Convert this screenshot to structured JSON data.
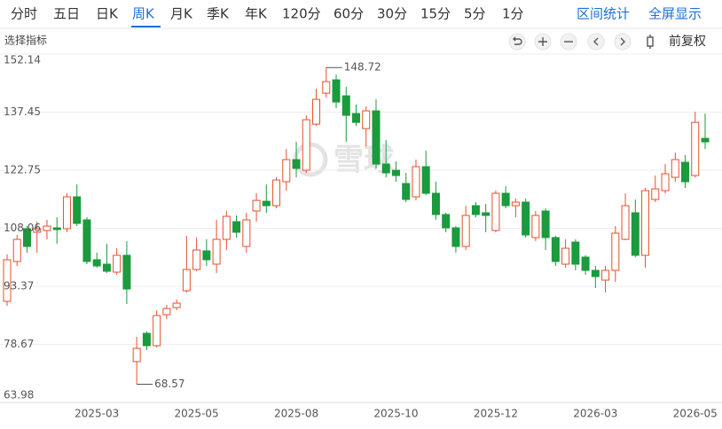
{
  "toolbar": {
    "tabs": [
      "分时",
      "五日",
      "日K",
      "周K",
      "月K",
      "季K",
      "年K",
      "120分",
      "60分",
      "30分",
      "15分",
      "5分",
      "1分"
    ],
    "actions": [
      "区间统计",
      "全屏显示"
    ]
  },
  "indicator_label": "选择指标",
  "adjust_label": "前复权",
  "chart_data": {
    "type": "candlestick",
    "watermark": "雪球",
    "categories": [
      null,
      null,
      null,
      null,
      null,
      null,
      null,
      null,
      null,
      "2025-03",
      null,
      null,
      null,
      null,
      null,
      null,
      null,
      null,
      null,
      "2025-05",
      null,
      null,
      null,
      null,
      null,
      null,
      null,
      null,
      null,
      "2025-08",
      null,
      null,
      null,
      null,
      null,
      null,
      null,
      null,
      null,
      "2025-10",
      null,
      null,
      null,
      null,
      null,
      null,
      null,
      null,
      null,
      "2025-12",
      null,
      null,
      null,
      null,
      null,
      null,
      null,
      null,
      null,
      "2026-03",
      null,
      null,
      null,
      null,
      null,
      null,
      null,
      null,
      null,
      "2026-05",
      null
    ],
    "open": [
      89.55,
      99.64,
      107.94,
      107.04,
      107.49,
      108.16,
      107.94,
      116.01,
      110.18,
      100.09,
      98.97,
      96.95,
      101.21,
      74.3,
      81.47,
      78.34,
      86.18,
      87.98,
      92.24,
      97.62,
      102.33,
      98.97,
      105.25,
      109.73,
      103.45,
      112.42,
      114.89,
      113.77,
      119.83,
      125.43,
      122.74,
      134.4,
      142.25,
      145.62,
      141.58,
      137.09,
      133.28,
      137.77,
      124.31,
      122.74,
      119.38,
      116.01,
      123.64,
      116.91,
      111.53,
      108.16,
      103.45,
      113.77,
      111.98,
      107.49,
      116.91,
      113.77,
      114.67,
      105.7,
      112.42,
      105.7,
      98.97,
      104.57,
      100.76,
      97.4,
      94.93,
      97.4,
      105.25,
      111.98,
      101.21,
      115.34,
      117.58,
      120.95,
      124.76,
      121.4,
      130.81
    ],
    "high": [
      101.44,
      106.37,
      108.61,
      109.73,
      110.18,
      110.85,
      116.91,
      119.15,
      110.85,
      101.88,
      104.13,
      103.0,
      104.8,
      80.58,
      81.92,
      87.31,
      88.65,
      90.0,
      106.14,
      105.7,
      105.25,
      110.18,
      112.42,
      111.3,
      111.98,
      116.91,
      119.15,
      120.95,
      128.12,
      129.92,
      136.64,
      143.37,
      148.72,
      146.96,
      143.82,
      139.34,
      138.89,
      140.68,
      130.36,
      124.98,
      122.07,
      125.43,
      127.67,
      119.83,
      111.98,
      108.61,
      113.77,
      114.67,
      114.22,
      117.58,
      118.7,
      115.56,
      115.56,
      112.42,
      113.1,
      106.14,
      105.25,
      105.25,
      101.21,
      98.52,
      98.52,
      108.61,
      116.91,
      115.34,
      118.25,
      121.4,
      124.31,
      127.22,
      126.55,
      137.54,
      137.09
    ],
    "low": [
      88.43,
      98.52,
      101.88,
      101.88,
      105.25,
      104.13,
      107.04,
      108.61,
      98.97,
      98.07,
      96.73,
      96.28,
      88.88,
      68.57,
      77.21,
      77.89,
      85.06,
      87.31,
      91.79,
      97.17,
      98.52,
      96.73,
      102.56,
      105.7,
      101.88,
      109.73,
      111.98,
      113.1,
      117.58,
      120.95,
      122.07,
      133.95,
      141.13,
      138.44,
      129.92,
      133.95,
      128.8,
      123.19,
      120.95,
      119.83,
      114.67,
      115.11,
      116.46,
      110.18,
      107.04,
      101.88,
      102.56,
      110.85,
      107.04,
      107.04,
      113.1,
      110.85,
      105.7,
      104.8,
      102.56,
      98.52,
      98.07,
      97.4,
      96.28,
      92.91,
      91.79,
      94.48,
      105.03,
      100.76,
      98.07,
      114.67,
      116.91,
      119.83,
      118.25,
      120.95,
      128.12
    ],
    "close": [
      100.09,
      105.25,
      103.45,
      107.94,
      108.61,
      107.71,
      116.01,
      109.28,
      99.64,
      98.52,
      97.17,
      101.21,
      92.69,
      77.66,
      78.34,
      85.96,
      87.75,
      89.1,
      97.62,
      102.56,
      100.09,
      105.25,
      111.08,
      107.04,
      110.18,
      115.11,
      113.77,
      120.27,
      125.43,
      123.19,
      135.52,
      140.68,
      145.17,
      140.01,
      136.64,
      134.85,
      137.77,
      124.31,
      122.07,
      121.4,
      115.34,
      123.64,
      116.91,
      111.53,
      108.16,
      103.45,
      111.3,
      111.53,
      111.3,
      116.91,
      113.77,
      114.67,
      106.37,
      111.3,
      105.7,
      99.64,
      103.0,
      98.97,
      97.4,
      95.83,
      97.4,
      106.82,
      113.77,
      101.21,
      117.58,
      118.03,
      121.84,
      125.43,
      119.83,
      134.85,
      129.92
    ],
    "up_color": "#e4502d",
    "down_color": "#1b9a3e",
    "ylim": [
      63.98,
      152.14
    ],
    "yticks": [
      63.98,
      78.67,
      93.37,
      108.06,
      122.75,
      137.45,
      152.14
    ],
    "grid": true
  }
}
